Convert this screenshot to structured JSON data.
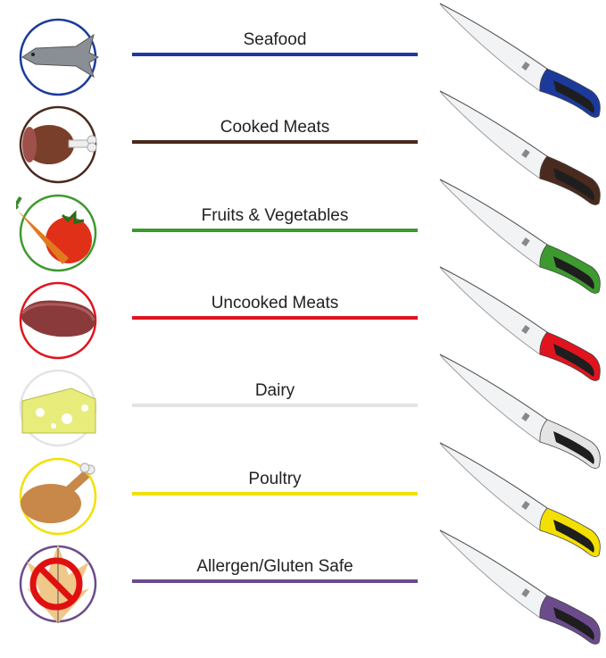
{
  "categories": [
    {
      "label": "Seafood",
      "color": "#1b3a9c",
      "icon": "fish-icon"
    },
    {
      "label": "Cooked Meats",
      "color": "#4a2a1e",
      "icon": "ham-icon"
    },
    {
      "label": "Fruits & Vegetables",
      "color": "#3d9a2e",
      "icon": "vegetables-icon"
    },
    {
      "label": "Uncooked Meats",
      "color": "#e0141e",
      "icon": "steak-icon"
    },
    {
      "label": "Dairy",
      "color": "#e4e4e4",
      "icon": "cheese-icon"
    },
    {
      "label": "Poultry",
      "color": "#f3e000",
      "icon": "turkey-icon"
    },
    {
      "label": "Allergen/Gluten Safe",
      "color": "#6b4b8c",
      "icon": "no-gluten-icon"
    }
  ]
}
